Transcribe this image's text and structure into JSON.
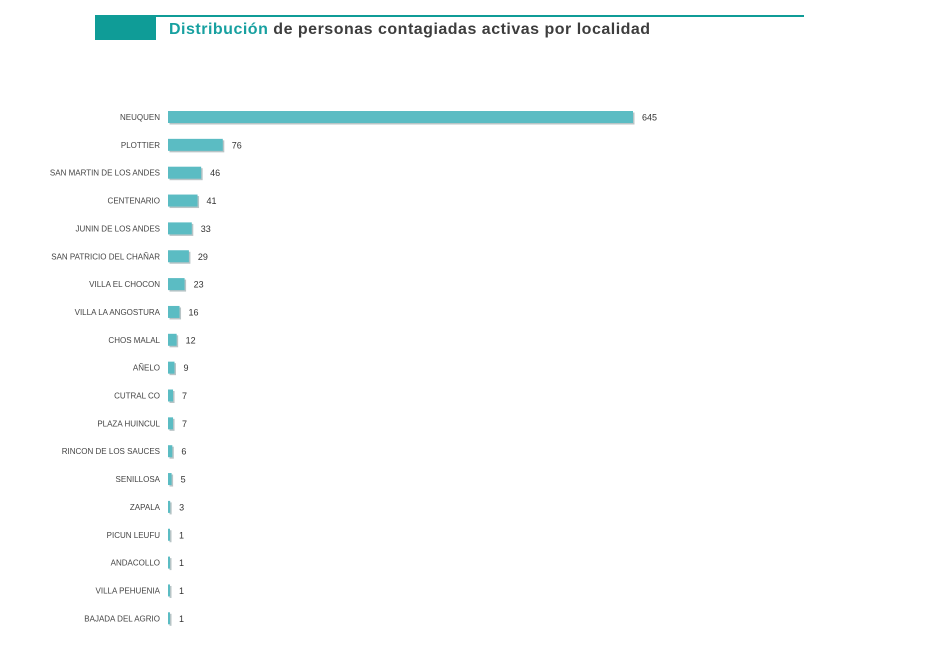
{
  "header": {
    "title_accent": "Distribución",
    "title_rest": " de personas contagiadas activas por localidad"
  },
  "colors": {
    "accent": "#0f9c97",
    "bar": "#5bbcc3",
    "bar_shadow": "#b8c4c6"
  },
  "chart_data": {
    "type": "bar",
    "orientation": "horizontal",
    "title": "Distribución de personas contagiadas activas por localidad",
    "xlabel": "",
    "ylabel": "",
    "grid": false,
    "legend": "none",
    "categories": [
      "NEUQUEN",
      "PLOTTIER",
      "SAN MARTIN DE LOS ANDES",
      "CENTENARIO",
      "JUNIN DE LOS ANDES",
      "SAN PATRICIO DEL CHAÑAR",
      "VILLA EL CHOCON",
      "VILLA LA ANGOSTURA",
      "CHOS MALAL",
      "AÑELO",
      "CUTRAL CO",
      "PLAZA HUINCUL",
      "RINCON DE LOS SAUCES",
      "SENILLOSA",
      "ZAPALA",
      "PICUN LEUFU",
      "ANDACOLLO",
      "VILLA PEHUENIA",
      "BAJADA DEL AGRIO"
    ],
    "values": [
      645,
      76,
      46,
      41,
      33,
      29,
      23,
      16,
      12,
      9,
      7,
      7,
      6,
      5,
      3,
      1,
      1,
      1,
      1
    ]
  }
}
